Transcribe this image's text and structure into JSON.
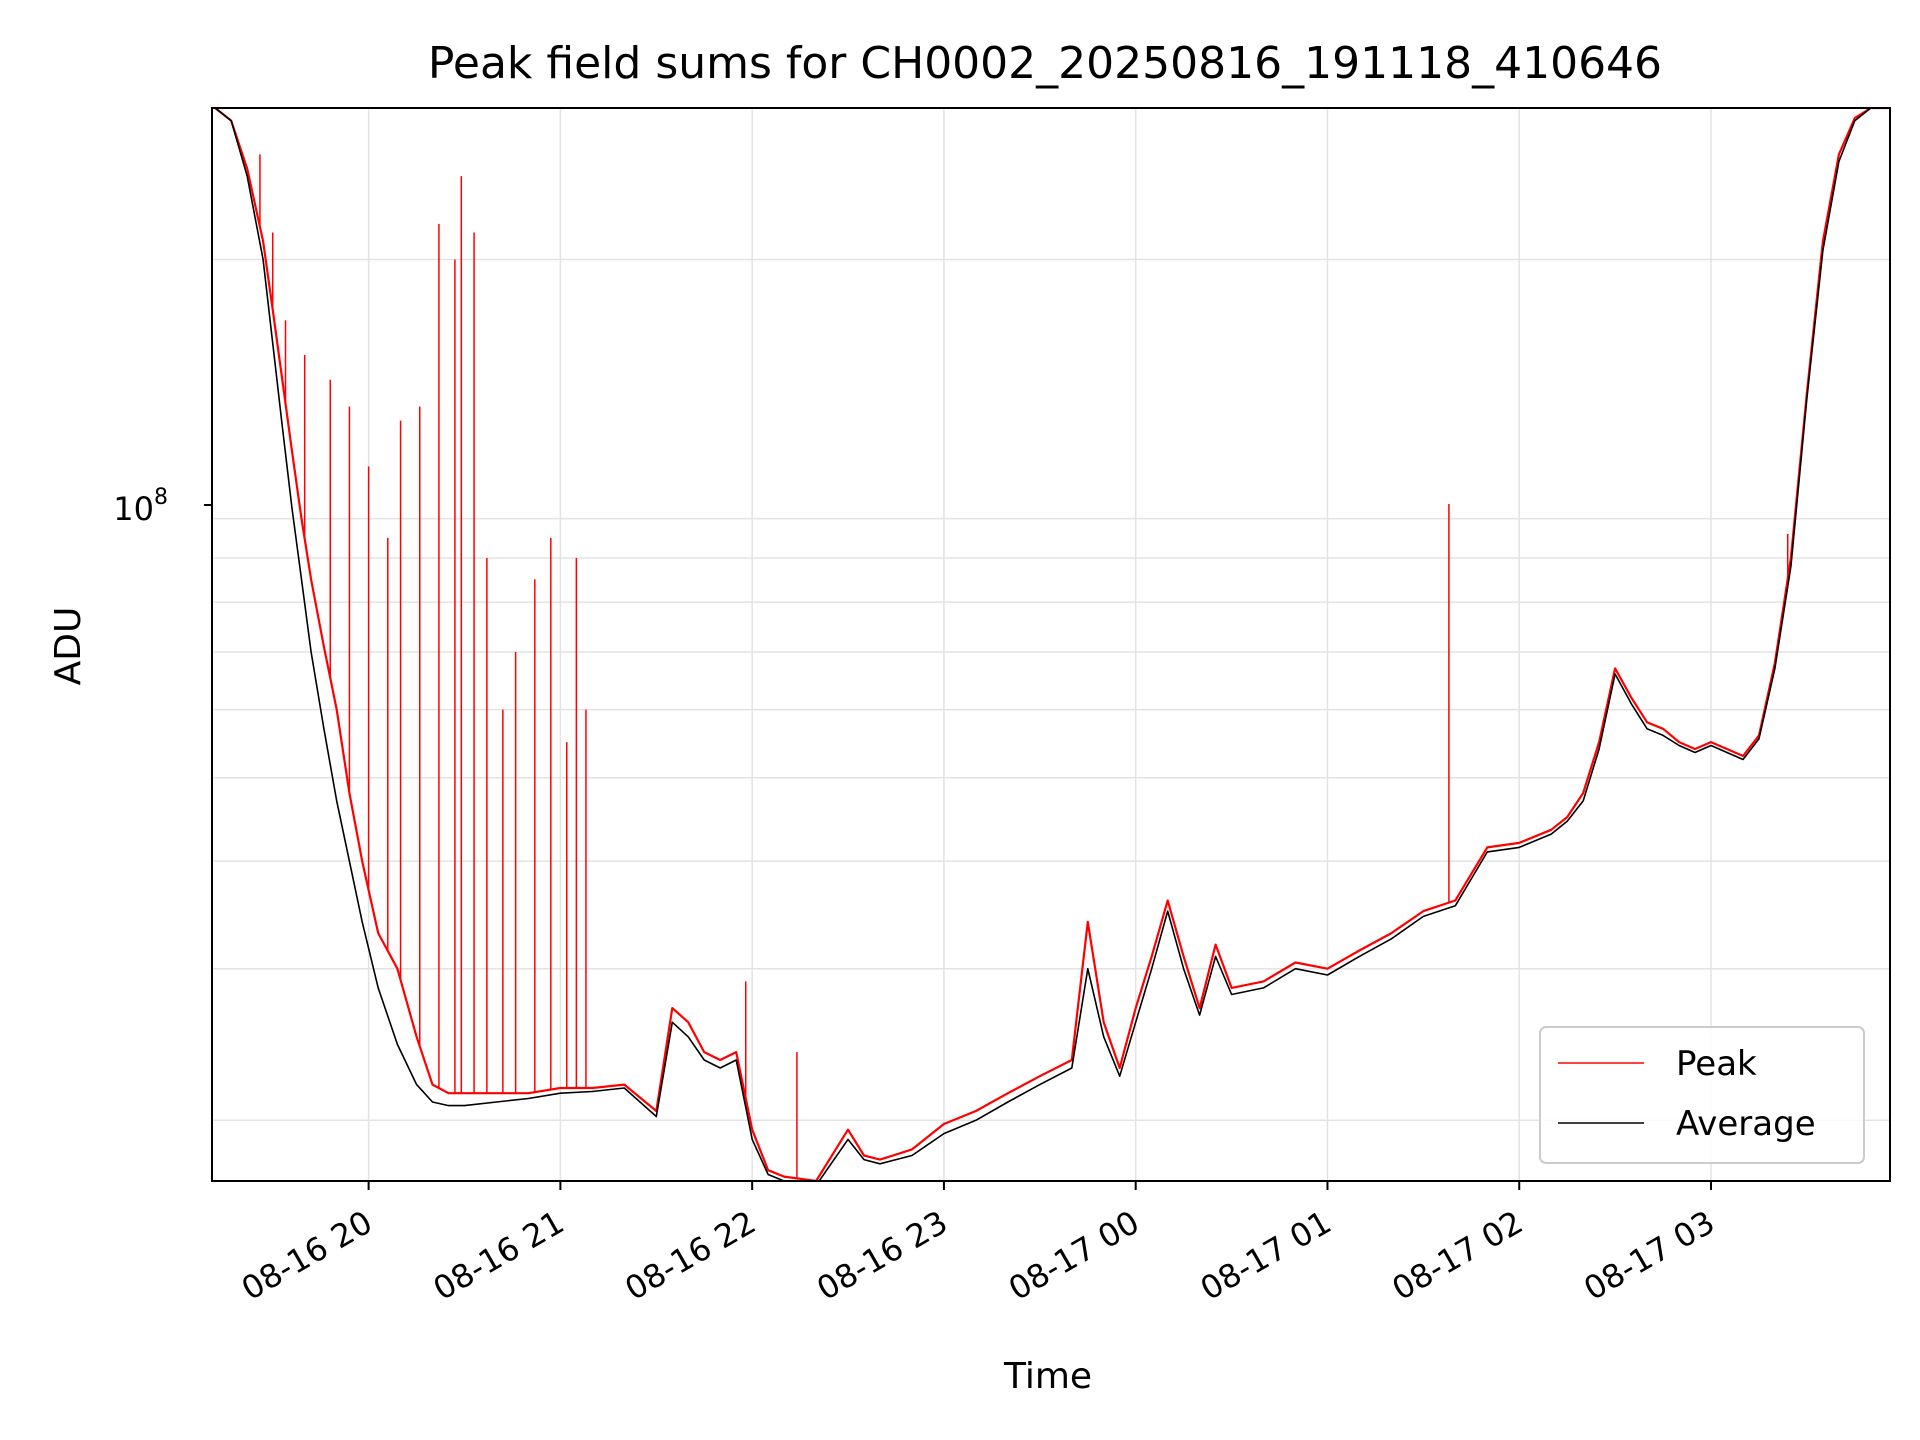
{
  "chart_data": {
    "type": "line",
    "title": "Peak field sums for CH0002_20250816_191118_410646",
    "xlabel": "Time",
    "ylabel": "ADU",
    "y_scale": "log",
    "grid": true,
    "legend_position": "lower-right",
    "x_ticks": [
      "08-16 20",
      "08-16 21",
      "08-16 22",
      "08-16 23",
      "08-17 00",
      "08-17 01",
      "08-17 02",
      "08-17 03"
    ],
    "y_tick_label_base": "10",
    "y_tick_label_exp": "8",
    "xlim": [
      "2025-08-16 19:11",
      "2025-08-17 03:56"
    ],
    "ylim": [
      17000000,
      300000000
    ],
    "series": [
      {
        "name": "Peak",
        "color": "#ff0000",
        "x": [
          "2025-08-16 19:12",
          "2025-08-16 19:17",
          "2025-08-16 19:22",
          "2025-08-16 19:27",
          "2025-08-16 19:30",
          "2025-08-16 19:33",
          "2025-08-16 19:36",
          "2025-08-16 19:39",
          "2025-08-16 19:42",
          "2025-08-16 19:46",
          "2025-08-16 19:50",
          "2025-08-16 19:54",
          "2025-08-16 19:58",
          "2025-08-16 20:03",
          "2025-08-16 20:09",
          "2025-08-16 20:15",
          "2025-08-16 20:20",
          "2025-08-16 20:25",
          "2025-08-16 20:30",
          "2025-08-16 20:40",
          "2025-08-16 20:50",
          "2025-08-16 21:00",
          "2025-08-16 21:10",
          "2025-08-16 21:20",
          "2025-08-16 21:30",
          "2025-08-16 21:35",
          "2025-08-16 21:40",
          "2025-08-16 21:45",
          "2025-08-16 21:50",
          "2025-08-16 21:55",
          "2025-08-16 22:00",
          "2025-08-16 22:05",
          "2025-08-16 22:10",
          "2025-08-16 22:20",
          "2025-08-16 22:30",
          "2025-08-16 22:35",
          "2025-08-16 22:40",
          "2025-08-16 22:50",
          "2025-08-16 23:00",
          "2025-08-16 23:10",
          "2025-08-16 23:20",
          "2025-08-16 23:30",
          "2025-08-16 23:40",
          "2025-08-16 23:45",
          "2025-08-16 23:50",
          "2025-08-16 23:55",
          "2025-08-17 00:00",
          "2025-08-17 00:05",
          "2025-08-17 00:10",
          "2025-08-17 00:15",
          "2025-08-17 00:20",
          "2025-08-17 00:25",
          "2025-08-17 00:30",
          "2025-08-17 00:40",
          "2025-08-17 00:50",
          "2025-08-17 01:00",
          "2025-08-17 01:10",
          "2025-08-17 01:20",
          "2025-08-17 01:30",
          "2025-08-17 01:40",
          "2025-08-17 01:50",
          "2025-08-17 02:00",
          "2025-08-17 02:10",
          "2025-08-17 02:15",
          "2025-08-17 02:20",
          "2025-08-17 02:25",
          "2025-08-17 02:30",
          "2025-08-17 02:35",
          "2025-08-17 02:40",
          "2025-08-17 02:45",
          "2025-08-17 02:50",
          "2025-08-17 02:55",
          "2025-08-17 03:00",
          "2025-08-17 03:05",
          "2025-08-17 03:10",
          "2025-08-17 03:15",
          "2025-08-17 03:20",
          "2025-08-17 03:25",
          "2025-08-17 03:30",
          "2025-08-17 03:35",
          "2025-08-17 03:40",
          "2025-08-17 03:45",
          "2025-08-17 03:50",
          "2025-08-17 03:55"
        ],
        "y": [
          300000000,
          290000000,
          255000000,
          210000000,
          175000000,
          145000000,
          120000000,
          100000000,
          85000000,
          71000000,
          60000000,
          48000000,
          40000000,
          33000000,
          30000000,
          25000000,
          22000000,
          21500000,
          21500000,
          21500000,
          21500000,
          21800000,
          21800000,
          22000000,
          20500000,
          27000000,
          26000000,
          24000000,
          23500000,
          24000000,
          19500000,
          17500000,
          17200000,
          17000000,
          19500000,
          18200000,
          18000000,
          18500000,
          19800000,
          20500000,
          21500000,
          22500000,
          23500000,
          34000000,
          26000000,
          23000000,
          27000000,
          31000000,
          36000000,
          31000000,
          27000000,
          32000000,
          28500000,
          29000000,
          30500000,
          30000000,
          31500000,
          33000000,
          35000000,
          36000000,
          41500000,
          42000000,
          43500000,
          45000000,
          48000000,
          55000000,
          67000000,
          62000000,
          58000000,
          57000000,
          55000000,
          54000000,
          55000000,
          54000000,
          53000000,
          56000000,
          68000000,
          90000000,
          140000000,
          210000000,
          265000000,
          292000000,
          300000000,
          300000000
        ]
      },
      {
        "name": "Average",
        "color": "#000000",
        "x": [
          "2025-08-16 19:12",
          "2025-08-16 19:17",
          "2025-08-16 19:22",
          "2025-08-16 19:27",
          "2025-08-16 19:30",
          "2025-08-16 19:33",
          "2025-08-16 19:36",
          "2025-08-16 19:39",
          "2025-08-16 19:42",
          "2025-08-16 19:46",
          "2025-08-16 19:50",
          "2025-08-16 19:54",
          "2025-08-16 19:58",
          "2025-08-16 20:03",
          "2025-08-16 20:09",
          "2025-08-16 20:15",
          "2025-08-16 20:20",
          "2025-08-16 20:25",
          "2025-08-16 20:30",
          "2025-08-16 20:40",
          "2025-08-16 20:50",
          "2025-08-16 21:00",
          "2025-08-16 21:10",
          "2025-08-16 21:20",
          "2025-08-16 21:30",
          "2025-08-16 21:35",
          "2025-08-16 21:40",
          "2025-08-16 21:45",
          "2025-08-16 21:50",
          "2025-08-16 21:55",
          "2025-08-16 22:00",
          "2025-08-16 22:05",
          "2025-08-16 22:10",
          "2025-08-16 22:20",
          "2025-08-16 22:30",
          "2025-08-16 22:35",
          "2025-08-16 22:40",
          "2025-08-16 22:50",
          "2025-08-16 23:00",
          "2025-08-16 23:10",
          "2025-08-16 23:20",
          "2025-08-16 23:30",
          "2025-08-16 23:40",
          "2025-08-16 23:45",
          "2025-08-16 23:50",
          "2025-08-16 23:55",
          "2025-08-17 00:00",
          "2025-08-17 00:05",
          "2025-08-17 00:10",
          "2025-08-17 00:15",
          "2025-08-17 00:20",
          "2025-08-17 00:25",
          "2025-08-17 00:30",
          "2025-08-17 00:40",
          "2025-08-17 00:50",
          "2025-08-17 01:00",
          "2025-08-17 01:10",
          "2025-08-17 01:20",
          "2025-08-17 01:30",
          "2025-08-17 01:40",
          "2025-08-17 01:50",
          "2025-08-17 02:00",
          "2025-08-17 02:10",
          "2025-08-17 02:15",
          "2025-08-17 02:20",
          "2025-08-17 02:25",
          "2025-08-17 02:30",
          "2025-08-17 02:35",
          "2025-08-17 02:40",
          "2025-08-17 02:45",
          "2025-08-17 02:50",
          "2025-08-17 02:55",
          "2025-08-17 03:00",
          "2025-08-17 03:05",
          "2025-08-17 03:10",
          "2025-08-17 03:15",
          "2025-08-17 03:20",
          "2025-08-17 03:25",
          "2025-08-17 03:30",
          "2025-08-17 03:35",
          "2025-08-17 03:40",
          "2025-08-17 03:45",
          "2025-08-17 03:50",
          "2025-08-17 03:55"
        ],
        "y": [
          300000000,
          290000000,
          250000000,
          200000000,
          160000000,
          128000000,
          103000000,
          85000000,
          70000000,
          57000000,
          47000000,
          40000000,
          34000000,
          28500000,
          24500000,
          22000000,
          21000000,
          20800000,
          20800000,
          21000000,
          21200000,
          21500000,
          21600000,
          21800000,
          20200000,
          26000000,
          25000000,
          23500000,
          23000000,
          23500000,
          19000000,
          17300000,
          17000000,
          16800000,
          19000000,
          18000000,
          17800000,
          18200000,
          19300000,
          20000000,
          21000000,
          22000000,
          23000000,
          30000000,
          25000000,
          22500000,
          26000000,
          30000000,
          35000000,
          30000000,
          26500000,
          31000000,
          28000000,
          28500000,
          30000000,
          29500000,
          31000000,
          32500000,
          34500000,
          35500000,
          41000000,
          41500000,
          43000000,
          44500000,
          47000000,
          54000000,
          66000000,
          61000000,
          57000000,
          56000000,
          54500000,
          53500000,
          54500000,
          53500000,
          52500000,
          55500000,
          67000000,
          88000000,
          138000000,
          205000000,
          260000000,
          290000000,
          300000000,
          300000000
        ]
      }
    ],
    "spikes": {
      "series": "Peak",
      "x": [
        "2025-08-16 19:26",
        "2025-08-16 19:30",
        "2025-08-16 19:34",
        "2025-08-16 19:40",
        "2025-08-16 19:48",
        "2025-08-16 19:54",
        "2025-08-16 20:00",
        "2025-08-16 20:06",
        "2025-08-16 20:10",
        "2025-08-16 20:16",
        "2025-08-16 20:22",
        "2025-08-16 20:27",
        "2025-08-16 20:29",
        "2025-08-16 20:33",
        "2025-08-16 20:37",
        "2025-08-16 20:42",
        "2025-08-16 20:46",
        "2025-08-16 20:52",
        "2025-08-16 20:57",
        "2025-08-16 21:02",
        "2025-08-16 21:05",
        "2025-08-16 21:08",
        "2025-08-16 21:58",
        "2025-08-16 22:14",
        "2025-08-17 01:38",
        "2025-08-17 03:24"
      ],
      "y": [
        265000000,
        215000000,
        170000000,
        155000000,
        145000000,
        135000000,
        115000000,
        95000000,
        130000000,
        135000000,
        220000000,
        200000000,
        250000000,
        215000000,
        90000000,
        60000000,
        70000000,
        85000000,
        95000000,
        55000000,
        90000000,
        60000000,
        29000000,
        24000000,
        104000000,
        96000000
      ]
    }
  }
}
